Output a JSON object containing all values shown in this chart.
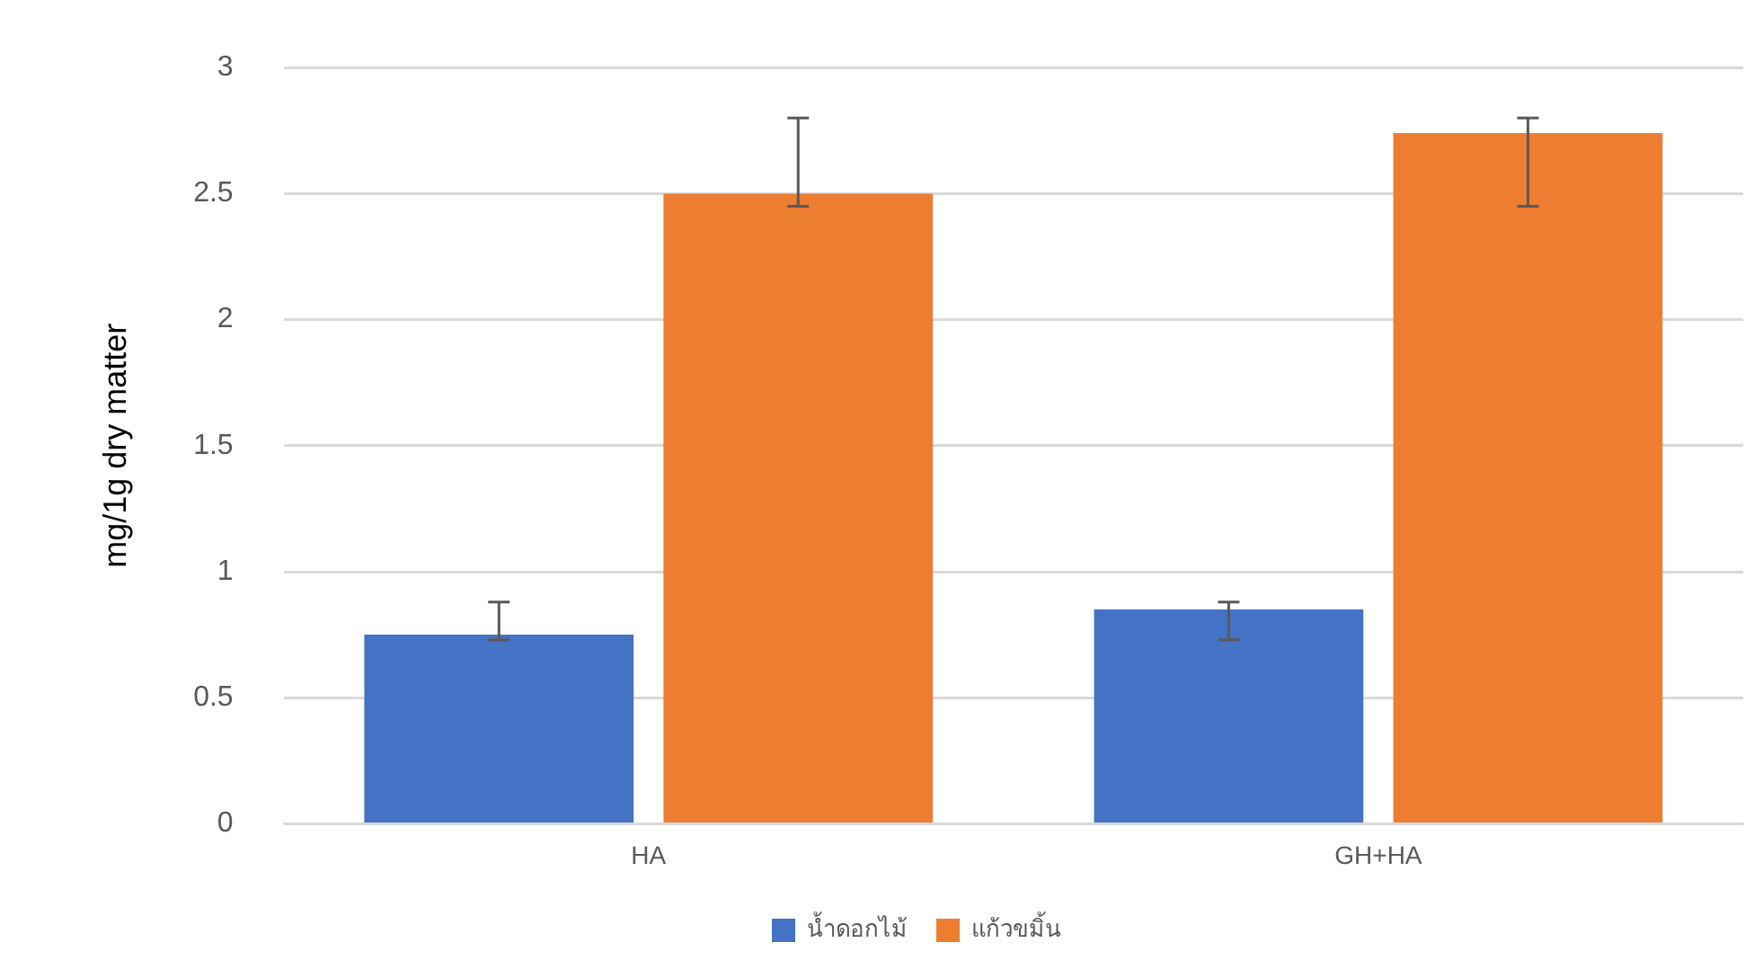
{
  "chart_data": {
    "type": "bar",
    "ylabel": "mg/1g dry matter",
    "categories": [
      "HA",
      "GH+HA"
    ],
    "series": [
      {
        "name": "น้ำดอกไม้",
        "color": "#4472c4",
        "values": [
          0.75,
          0.85
        ],
        "errors": [
          [
            0.73,
            0.88
          ],
          [
            0.73,
            0.88
          ]
        ]
      },
      {
        "name": "แก้วขมิ้น",
        "color": "#ed7d31",
        "values": [
          2.5,
          2.74
        ],
        "errors": [
          [
            2.45,
            2.8
          ],
          [
            2.45,
            2.8
          ]
        ]
      }
    ],
    "ylim": [
      0,
      3
    ],
    "yticks": [
      0,
      0.5,
      1,
      1.5,
      2,
      2.5,
      3
    ],
    "grid": "y",
    "legend": "bottom"
  }
}
